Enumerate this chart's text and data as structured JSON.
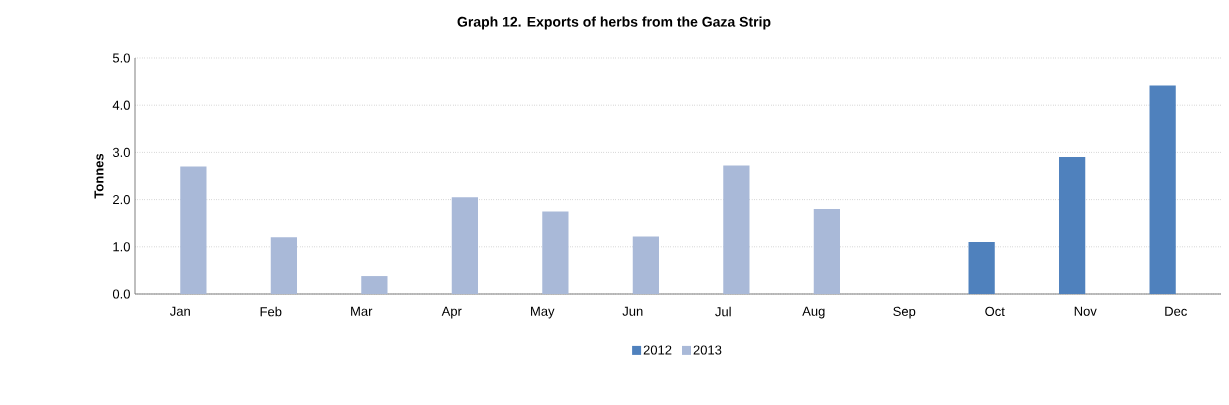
{
  "chart_data": {
    "type": "bar",
    "title": "Graph 12. Exports of herbs from the Gaza Strip",
    "ylabel": "Tonnes",
    "categories": [
      "Jan",
      "Feb",
      "Mar",
      "Apr",
      "May",
      "Jun",
      "Jul",
      "Aug",
      "Sep",
      "Oct",
      "Nov",
      "Dec"
    ],
    "series": [
      {
        "name": "2012",
        "color": "#4f81bd",
        "values": [
          null,
          null,
          null,
          null,
          null,
          null,
          null,
          null,
          null,
          1.1,
          2.9,
          4.42
        ]
      },
      {
        "name": "2013",
        "color": "#a9b9d8",
        "values": [
          2.7,
          1.2,
          0.38,
          2.05,
          1.75,
          1.22,
          2.72,
          1.8,
          null,
          null,
          null,
          null
        ]
      }
    ],
    "ylim": [
      0,
      5
    ],
    "yticks": [
      {
        "value": 0,
        "label": "0.0"
      },
      {
        "value": 1,
        "label": "1.0"
      },
      {
        "value": 2,
        "label": "2.0"
      },
      {
        "value": 3,
        "label": "3.0"
      },
      {
        "value": 4,
        "label": "4.0"
      },
      {
        "value": 5,
        "label": "5.0"
      }
    ],
    "grid": "y",
    "legend": "bottom"
  }
}
